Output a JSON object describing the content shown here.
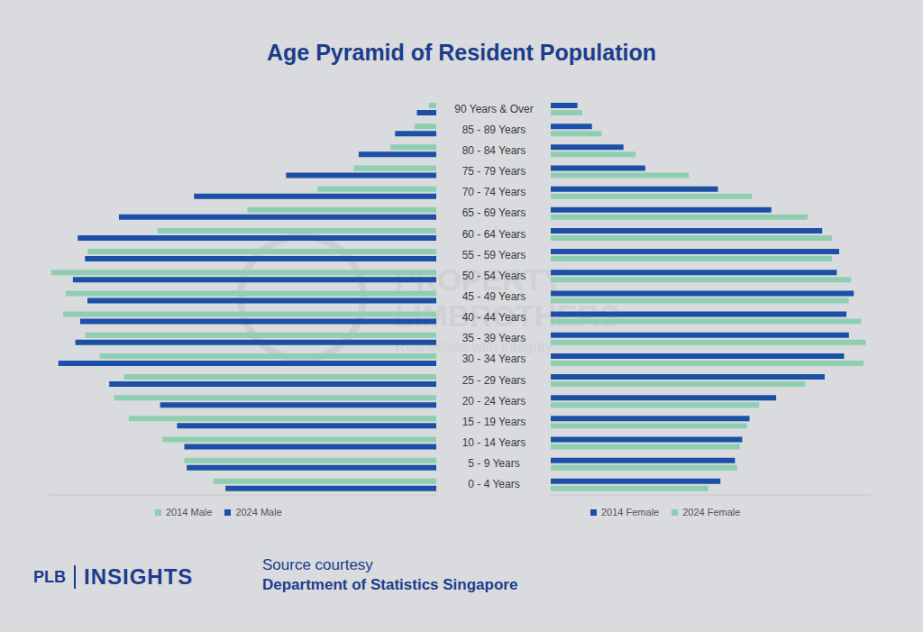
{
  "chart_data": [
    {
      "type": "bar",
      "title": "Age Pyramid of Resident Population",
      "orientation": "horizontal",
      "tick_labels": "y",
      "categories": [
        "90 Years & Over",
        "85 - 89 Years",
        "80 - 84 Years",
        "75 - 79 Years",
        "70 - 74 Years",
        "65 - 69 Years",
        "60 - 64 Years",
        "55 - 59 Years",
        "50 - 54 Years",
        "45 - 49 Years",
        "40 - 44 Years",
        "35 - 39 Years",
        "30 - 34 Years",
        "25 - 29 Years",
        "20 - 24 Years",
        "15 - 19 Years",
        "10 - 14 Years",
        "5 - 9 Years",
        "0 - 4 Years"
      ],
      "xlim": [
        0,
        160
      ],
      "series": [
        {
          "name": "2014 Male",
          "color": "#8fcfb1",
          "values": [
            3,
            9,
            19,
            34,
            49,
            78,
            115,
            144,
            159,
            153,
            154,
            145,
            139,
            129,
            133,
            127,
            113,
            104,
            92
          ]
        },
        {
          "name": "2024 Male",
          "color": "#1c4fa6",
          "values": [
            8,
            17,
            32,
            62,
            100,
            131,
            148,
            145,
            150,
            144,
            147,
            149,
            156,
            135,
            114,
            107,
            104,
            103,
            87
          ]
        }
      ]
    },
    {
      "type": "bar",
      "orientation": "horizontal",
      "tick_labels": false,
      "categories": [
        "90 Years & Over",
        "85 - 89 Years",
        "80 - 84 Years",
        "75 - 79 Years",
        "70 - 74 Years",
        "65 - 69 Years",
        "60 - 64 Years",
        "55 - 59 Years",
        "50 - 54 Years",
        "45 - 49 Years",
        "40 - 44 Years",
        "35 - 39 Years",
        "30 - 34 Years",
        "25 - 29 Years",
        "20 - 24 Years",
        "15 - 19 Years",
        "10 - 14 Years",
        "5 - 9 Years",
        "0 - 4 Years"
      ],
      "xlim": [
        0,
        132
      ],
      "series": [
        {
          "name": "2014 Female",
          "color": "#1c4fa6",
          "values": [
            11,
            17,
            30,
            39,
            69,
            91,
            112,
            119,
            118,
            125,
            122,
            123,
            121,
            113,
            93,
            82,
            79,
            76,
            70
          ]
        },
        {
          "name": "2024 Female",
          "color": "#8fcfb1",
          "values": [
            13,
            21,
            35,
            57,
            83,
            106,
            116,
            116,
            124,
            123,
            128,
            130,
            129,
            105,
            86,
            81,
            78,
            77,
            65
          ]
        }
      ]
    }
  ],
  "branding": {
    "logo": "PLB",
    "logo_text": "INSIGHTS"
  },
  "source": {
    "line1": "Source courtesy",
    "line2": "Department of Statistics Singapore"
  },
  "watermark": {
    "line1": "PROPERTY",
    "line2": "LIMBROTHERS",
    "line3": "Real estate with integrity"
  }
}
